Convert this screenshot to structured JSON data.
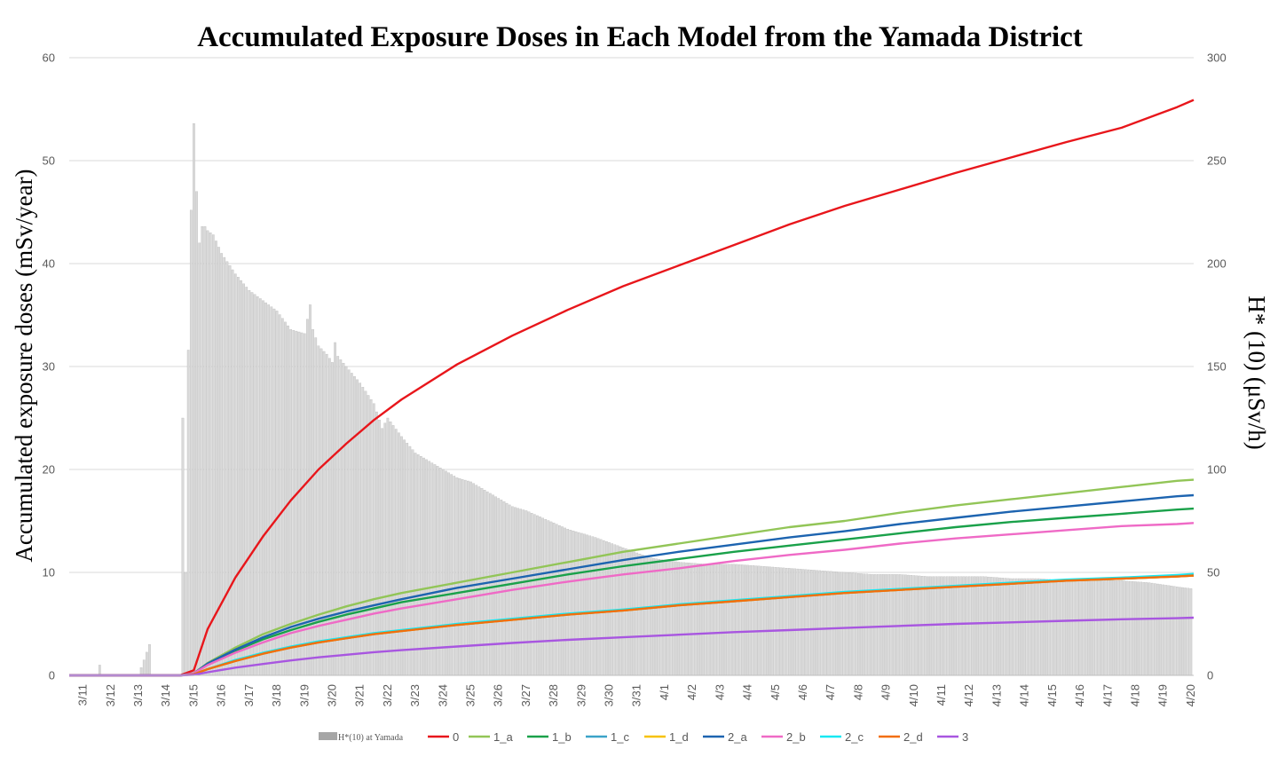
{
  "chart_data": {
    "type": "line",
    "title": "Accumulated Exposure Doses in Each Model from the Yamada District",
    "ylabel": "Accumulated exposure doses (mSv/year)",
    "y2label": "H* (10) (μSv/h)",
    "ylim": [
      0,
      60
    ],
    "y2lim": [
      0,
      300
    ],
    "yticks": [
      "0",
      "10",
      "20",
      "30",
      "40",
      "50",
      "60"
    ],
    "y2ticks": [
      "0",
      "50",
      "100",
      "150",
      "200",
      "250",
      "300"
    ],
    "grid": true,
    "legend_position": "bottom",
    "x_start_day": 0,
    "x_end_day": 40.6,
    "x_categories": [
      "3/11",
      "3/12",
      "3/13",
      "3/14",
      "3/15",
      "3/16",
      "3/17",
      "3/18",
      "3/19",
      "3/20",
      "3/21",
      "3/22",
      "3/23",
      "3/24",
      "3/25",
      "3/26",
      "3/27",
      "3/28",
      "3/29",
      "3/30",
      "3/31",
      "4/1",
      "4/2",
      "4/3",
      "4/4",
      "4/5",
      "4/6",
      "4/7",
      "4/8",
      "4/9",
      "4/10",
      "4/11",
      "4/12",
      "4/13",
      "4/14",
      "4/15",
      "4/16",
      "4/17",
      "4/18",
      "4/19",
      "4/20"
    ],
    "bar_series": {
      "name": "H*(10) at Yamada",
      "color": "#b3b3b3",
      "fill_color": "#d9d9d9",
      "axis": "right",
      "x": [
        0,
        1,
        1.05,
        1.1,
        1.2,
        2,
        2.05,
        2.5,
        2.9,
        3,
        3.5,
        4,
        4.1,
        4.2,
        4.25,
        4.3,
        4.35,
        4.4,
        4.45,
        4.5,
        4.55,
        4.6,
        4.65,
        4.7,
        4.8,
        4.9,
        5,
        5.2,
        5.5,
        6,
        6.5,
        7,
        7.5,
        8,
        8.5,
        8.7,
        8.8,
        9,
        9.3,
        9.5,
        9.55,
        9.7,
        10,
        10.5,
        11,
        11.3,
        11.5,
        12,
        12.5,
        13,
        13.5,
        14,
        14.5,
        15,
        15.5,
        16,
        16.5,
        17,
        17.5,
        18,
        19,
        20,
        21,
        22,
        23,
        24,
        25,
        26,
        27,
        28,
        29,
        30,
        31,
        32,
        33,
        34,
        35,
        36,
        37,
        38,
        39,
        40,
        40.6
      ],
      "y": [
        0,
        0,
        21,
        5,
        0,
        0,
        0,
        0,
        15,
        0,
        0,
        0,
        125,
        50,
        30,
        158,
        60,
        226,
        253,
        268,
        244,
        235,
        226,
        210,
        218,
        218,
        216,
        214,
        205,
        195,
        187,
        182,
        177,
        168,
        166,
        180,
        168,
        160,
        156,
        152,
        165,
        155,
        150,
        142,
        132,
        120,
        125,
        116,
        108,
        104,
        100,
        96,
        94,
        90,
        86,
        82,
        80,
        77,
        74,
        71,
        67,
        62,
        57,
        55,
        54,
        54,
        53,
        52,
        51,
        50,
        49,
        49,
        48,
        48,
        48,
        47,
        47,
        46,
        46,
        46,
        45,
        43,
        42
      ]
    },
    "series": [
      {
        "name": "0",
        "color": "#e8161b",
        "x": [
          0,
          4,
          4.5,
          5,
          6,
          7,
          8,
          9,
          10,
          11,
          12,
          14,
          16,
          18,
          20,
          22,
          24,
          26,
          28,
          30,
          32,
          34,
          36,
          38,
          40,
          40.6
        ],
        "y": [
          0,
          0,
          0.5,
          4.5,
          9.5,
          13.5,
          17,
          20,
          22.5,
          24.8,
          26.8,
          30.2,
          33,
          35.5,
          37.8,
          39.8,
          41.8,
          43.8,
          45.6,
          47.2,
          48.8,
          50.3,
          51.8,
          53.2,
          55.2,
          55.9
        ]
      },
      {
        "name": "1_a",
        "color": "#92c557",
        "x": [
          0,
          4,
          4.5,
          5,
          6,
          7,
          8,
          9,
          10,
          11,
          12,
          14,
          16,
          18,
          20,
          22,
          24,
          26,
          28,
          30,
          32,
          34,
          36,
          38,
          40,
          40.6
        ],
        "y": [
          0,
          0,
          0.2,
          1.2,
          2.7,
          4,
          5,
          5.9,
          6.7,
          7.4,
          8,
          9,
          10,
          11,
          12,
          12.8,
          13.6,
          14.4,
          15,
          15.8,
          16.5,
          17.1,
          17.7,
          18.3,
          18.9,
          19
        ]
      },
      {
        "name": "1_b",
        "color": "#1aa14a",
        "x": [
          0,
          4,
          4.5,
          5,
          6,
          7,
          8,
          9,
          10,
          11,
          12,
          14,
          16,
          18,
          20,
          22,
          24,
          26,
          28,
          30,
          32,
          34,
          36,
          38,
          40,
          40.6
        ],
        "y": [
          0,
          0,
          0.2,
          1.1,
          2.4,
          3.5,
          4.4,
          5.2,
          5.9,
          6.5,
          7.1,
          8,
          8.9,
          9.8,
          10.6,
          11.3,
          12,
          12.6,
          13.2,
          13.8,
          14.4,
          14.9,
          15.3,
          15.7,
          16.1,
          16.2
        ]
      },
      {
        "name": "1_c",
        "color": "#3ba3c8",
        "x": [
          0,
          4,
          4.5,
          5,
          6,
          7,
          8,
          9,
          10,
          11,
          12,
          14,
          16,
          18,
          20,
          22,
          24,
          26,
          28,
          30,
          32,
          34,
          36,
          38,
          40,
          40.6
        ],
        "y": [
          0,
          0,
          0.1,
          0.6,
          1.4,
          2.1,
          2.7,
          3.2,
          3.6,
          4,
          4.3,
          4.9,
          5.4,
          5.9,
          6.3,
          6.8,
          7.2,
          7.6,
          8,
          8.3,
          8.6,
          8.9,
          9.2,
          9.4,
          9.6,
          9.7
        ]
      },
      {
        "name": "1_d",
        "color": "#f7c203",
        "x": [
          0,
          4,
          4.5,
          5,
          6,
          7,
          8,
          9,
          10,
          11,
          12,
          14,
          16,
          18,
          20,
          22,
          24,
          26,
          28,
          30,
          32,
          34,
          36,
          38,
          40,
          40.6
        ],
        "y": [
          0,
          0,
          0.1,
          0.6,
          1.4,
          2.1,
          2.7,
          3.2,
          3.6,
          4,
          4.3,
          4.9,
          5.4,
          5.9,
          6.3,
          6.8,
          7.2,
          7.6,
          8,
          8.3,
          8.6,
          8.9,
          9.2,
          9.4,
          9.6,
          9.7
        ]
      },
      {
        "name": "2_a",
        "color": "#1d64b0",
        "x": [
          0,
          4,
          4.5,
          5,
          6,
          7,
          8,
          9,
          10,
          11,
          12,
          14,
          16,
          18,
          20,
          22,
          24,
          26,
          28,
          30,
          32,
          34,
          36,
          38,
          40,
          40.6
        ],
        "y": [
          0,
          0,
          0.2,
          1.15,
          2.5,
          3.7,
          4.7,
          5.5,
          6.2,
          6.8,
          7.4,
          8.5,
          9.4,
          10.3,
          11.2,
          12,
          12.7,
          13.4,
          14,
          14.7,
          15.3,
          15.9,
          16.4,
          16.9,
          17.4,
          17.5
        ]
      },
      {
        "name": "2_b",
        "color": "#ef6ac6",
        "x": [
          0,
          4,
          4.5,
          5,
          6,
          7,
          8,
          9,
          10,
          11,
          12,
          14,
          16,
          18,
          20,
          22,
          24,
          26,
          28,
          30,
          32,
          34,
          36,
          38,
          40,
          40.6
        ],
        "y": [
          0,
          0,
          0.2,
          1,
          2.2,
          3.2,
          4.1,
          4.8,
          5.4,
          6,
          6.5,
          7.4,
          8.3,
          9.1,
          9.8,
          10.4,
          11.1,
          11.7,
          12.2,
          12.8,
          13.3,
          13.7,
          14.1,
          14.5,
          14.7,
          14.8
        ]
      },
      {
        "name": "2_c",
        "color": "#17e8f2",
        "x": [
          0,
          4,
          4.5,
          5,
          6,
          7,
          8,
          9,
          10,
          11,
          12,
          14,
          16,
          18,
          20,
          22,
          24,
          26,
          28,
          30,
          32,
          34,
          36,
          38,
          40,
          40.6
        ],
        "y": [
          0,
          0,
          0.1,
          0.6,
          1.5,
          2.2,
          2.8,
          3.3,
          3.7,
          4.1,
          4.4,
          5,
          5.5,
          6,
          6.4,
          6.9,
          7.3,
          7.7,
          8.1,
          8.4,
          8.7,
          9,
          9.3,
          9.5,
          9.75,
          9.85
        ]
      },
      {
        "name": "2_d",
        "color": "#f26e0c",
        "x": [
          0,
          4,
          4.5,
          5,
          6,
          7,
          8,
          9,
          10,
          11,
          12,
          14,
          16,
          18,
          20,
          22,
          24,
          26,
          28,
          30,
          32,
          34,
          36,
          38,
          40,
          40.6
        ],
        "y": [
          0,
          0,
          0.1,
          0.6,
          1.4,
          2.1,
          2.7,
          3.2,
          3.6,
          4,
          4.3,
          4.9,
          5.4,
          5.9,
          6.3,
          6.8,
          7.2,
          7.6,
          8,
          8.3,
          8.6,
          8.9,
          9.2,
          9.4,
          9.6,
          9.7
        ]
      },
      {
        "name": "3",
        "color": "#a856e0",
        "x": [
          0,
          4,
          4.5,
          5,
          6,
          7,
          8,
          9,
          10,
          11,
          12,
          14,
          16,
          18,
          20,
          22,
          24,
          26,
          28,
          30,
          32,
          34,
          36,
          38,
          40,
          40.6
        ],
        "y": [
          0,
          0,
          0.05,
          0.3,
          0.75,
          1.1,
          1.45,
          1.75,
          2,
          2.25,
          2.45,
          2.8,
          3.15,
          3.45,
          3.7,
          3.95,
          4.2,
          4.4,
          4.6,
          4.8,
          5,
          5.15,
          5.3,
          5.45,
          5.55,
          5.6
        ]
      }
    ]
  }
}
